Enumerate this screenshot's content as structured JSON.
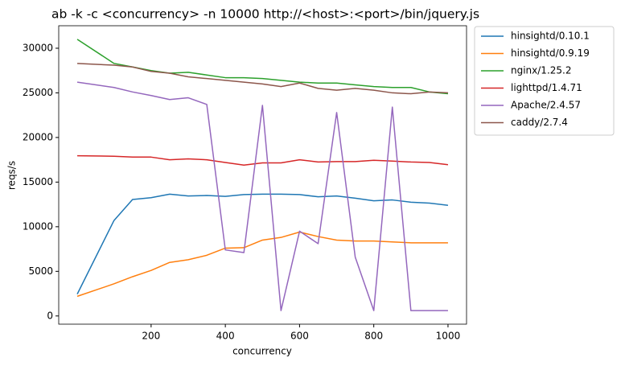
{
  "chart_data": {
    "type": "line",
    "title": "ab -k -c <concurrency> -n 10000 http://<host>:<port>/bin/jquery.js",
    "x_label": "concurrency",
    "y_label": "reqs/s",
    "x": [
      1,
      100,
      150,
      200,
      250,
      300,
      350,
      400,
      450,
      500,
      550,
      600,
      650,
      700,
      750,
      800,
      850,
      900,
      950,
      1000
    ],
    "series": [
      {
        "name": "hinsightd/0.10.1",
        "color": "#1f77b4",
        "values": [
          2450,
          10700,
          13050,
          13250,
          13650,
          13450,
          13500,
          13400,
          13600,
          13650,
          13650,
          13600,
          13350,
          13450,
          13200,
          12900,
          13000,
          12750,
          12650,
          12400
        ]
      },
      {
        "name": "hinsightd/0.9.19",
        "color": "#ff7f0e",
        "values": [
          2200,
          3600,
          4400,
          5100,
          6000,
          6300,
          6800,
          7600,
          7650,
          8500,
          8800,
          9400,
          8900,
          8500,
          8400,
          8400,
          8300,
          8200,
          8200,
          8200
        ]
      },
      {
        "name": "nginx/1.25.2",
        "color": "#2ca02c",
        "values": [
          31000,
          28300,
          27900,
          27500,
          27200,
          27300,
          27000,
          26700,
          26700,
          26600,
          26400,
          26200,
          26100,
          26100,
          25900,
          25700,
          25600,
          25600,
          25100,
          24900
        ]
      },
      {
        "name": "lighttpd/1.4.71",
        "color": "#d62728",
        "values": [
          17950,
          17900,
          17800,
          17800,
          17500,
          17600,
          17500,
          17200,
          16900,
          17150,
          17150,
          17500,
          17250,
          17300,
          17300,
          17450,
          17350,
          17250,
          17200,
          16950
        ]
      },
      {
        "name": "Apache/2.4.57",
        "color": "#9467bd",
        "values": [
          26200,
          25600,
          25100,
          24700,
          24250,
          24450,
          23700,
          7400,
          7100,
          23600,
          600,
          9500,
          8100,
          22800,
          6600,
          600,
          23400,
          600,
          600,
          600
        ]
      },
      {
        "name": "caddy/2.7.4",
        "color": "#8c564b",
        "values": [
          28300,
          28100,
          27900,
          27400,
          27200,
          26800,
          26600,
          26400,
          26200,
          26000,
          25700,
          26100,
          25500,
          25300,
          25500,
          25300,
          25000,
          24900,
          25100,
          25000
        ]
      }
    ],
    "xlim": [
      -48.95,
      1049.95
    ],
    "ylim": [
      -920,
      32520
    ],
    "xticks": [
      200,
      400,
      600,
      800,
      1000
    ],
    "yticks": [
      0,
      5000,
      10000,
      15000,
      20000,
      25000,
      30000
    ],
    "legend": "outside upper right",
    "grid": false
  }
}
